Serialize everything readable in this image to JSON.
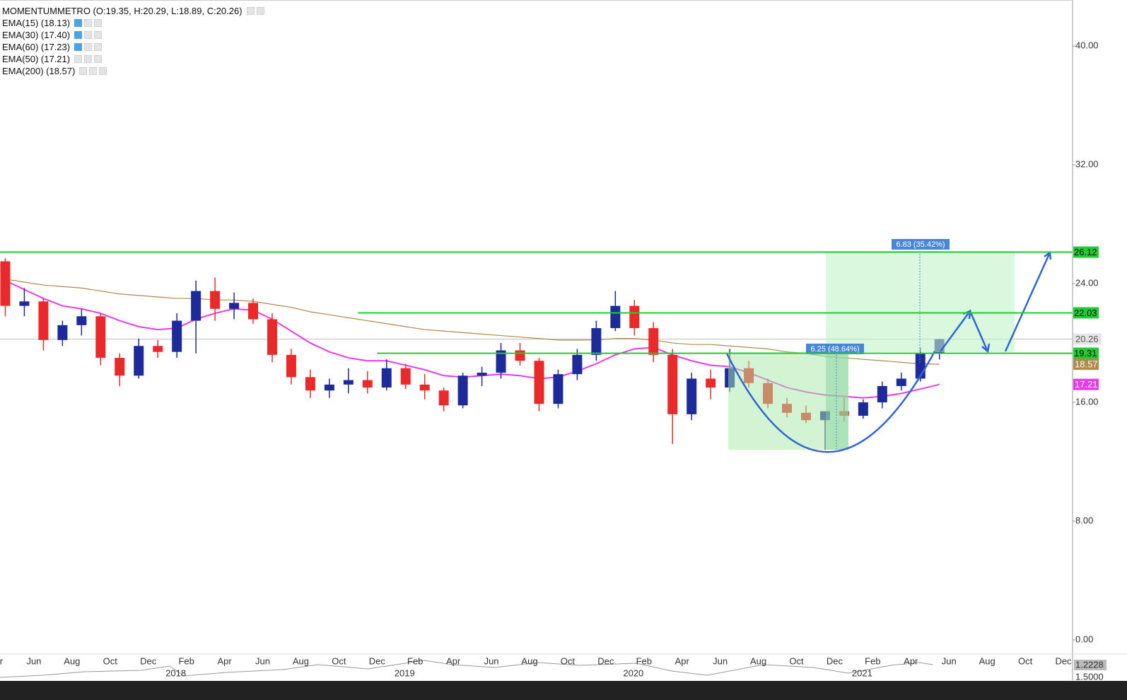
{
  "chart_data": {
    "type": "candlestick",
    "title": "MOMENTUMMETRO (O:19.35, H:20.29, L:18.89, C:20.26)",
    "x": [
      "2017-04",
      "2017-05",
      "2017-06",
      "2017-07",
      "2017-08",
      "2017-09",
      "2017-10",
      "2017-11",
      "2017-12",
      "2018-01",
      "2018-02",
      "2018-03",
      "2018-04",
      "2018-05",
      "2018-06",
      "2018-07",
      "2018-08",
      "2018-09",
      "2018-10",
      "2018-11",
      "2018-12",
      "2019-01",
      "2019-02",
      "2019-03",
      "2019-04",
      "2019-05",
      "2019-06",
      "2019-07",
      "2019-08",
      "2019-09",
      "2019-10",
      "2019-11",
      "2019-12",
      "2020-01",
      "2020-02",
      "2020-03",
      "2020-04",
      "2020-05",
      "2020-06",
      "2020-07",
      "2020-08",
      "2020-09",
      "2020-10",
      "2020-11",
      "2020-12",
      "2021-01",
      "2021-02",
      "2021-03",
      "2021-04",
      "2021-05"
    ],
    "open": [
      25.5,
      22.5,
      22.8,
      20.2,
      21.2,
      21.8,
      19.0,
      17.8,
      19.8,
      19.4,
      21.5,
      23.5,
      22.3,
      22.7,
      21.6,
      19.2,
      17.7,
      16.8,
      17.2,
      17.5,
      17.0,
      18.3,
      17.2,
      16.8,
      15.8,
      17.8,
      18.0,
      19.5,
      18.8,
      15.9,
      17.9,
      19.2,
      21.0,
      22.5,
      21.0,
      19.2,
      15.2,
      17.6,
      17.0,
      18.3,
      17.3,
      15.9,
      15.3,
      14.8,
      15.4,
      15.1,
      16.0,
      17.1,
      17.6,
      19.35
    ],
    "high": [
      25.7,
      23.7,
      23.0,
      21.5,
      22.3,
      22.0,
      19.3,
      20.3,
      20.2,
      22.0,
      24.2,
      24.4,
      23.4,
      23.0,
      22.0,
      19.6,
      18.2,
      17.6,
      18.3,
      18.1,
      18.9,
      18.6,
      17.9,
      17.0,
      18.0,
      18.4,
      20.0,
      20.0,
      19.0,
      18.2,
      19.6,
      21.5,
      23.5,
      22.9,
      21.4,
      19.6,
      18.0,
      18.2,
      19.6,
      18.8,
      17.6,
      16.3,
      15.8,
      15.0,
      16.3,
      16.2,
      17.4,
      18.0,
      19.7,
      20.29
    ],
    "low": [
      21.8,
      21.8,
      19.5,
      19.8,
      20.5,
      18.5,
      17.1,
      17.6,
      19.0,
      19.0,
      19.3,
      21.5,
      21.6,
      21.3,
      18.7,
      17.2,
      16.3,
      16.3,
      16.6,
      16.6,
      16.8,
      16.9,
      16.2,
      15.4,
      15.6,
      17.1,
      17.6,
      18.5,
      15.4,
      15.6,
      17.5,
      18.8,
      20.8,
      20.5,
      18.7,
      13.2,
      14.8,
      16.2,
      16.7,
      17.0,
      15.6,
      15.0,
      14.6,
      12.8,
      14.7,
      14.9,
      15.6,
      16.8,
      17.4,
      18.89
    ],
    "close": [
      22.5,
      22.8,
      20.2,
      21.2,
      21.8,
      19.0,
      17.8,
      19.8,
      19.4,
      21.5,
      23.5,
      22.3,
      22.7,
      21.6,
      19.2,
      17.7,
      16.8,
      17.2,
      17.5,
      17.0,
      18.3,
      17.2,
      16.8,
      15.8,
      17.8,
      18.0,
      19.5,
      18.8,
      15.9,
      17.9,
      19.2,
      21.0,
      22.5,
      21.0,
      19.2,
      15.2,
      17.6,
      17.0,
      18.3,
      17.3,
      15.9,
      15.3,
      14.8,
      15.4,
      15.1,
      16.0,
      17.1,
      17.6,
      19.3,
      20.26
    ],
    "up_color": "#1c2a9a",
    "down_color": "#ea2a2a",
    "series": [
      {
        "name": "EMA(15) (18.13)"
      },
      {
        "name": "EMA(30) (17.40)"
      },
      {
        "name": "EMA(60) (17.23)"
      },
      {
        "name": "EMA(50) (17.21)",
        "color": "#e83ae8",
        "last": 17.21,
        "values": [
          24.2,
          23.6,
          23.0,
          22.5,
          22.3,
          22.0,
          21.5,
          21.1,
          20.9,
          21.0,
          21.6,
          22.0,
          22.3,
          22.2,
          21.6,
          20.8,
          20.0,
          19.4,
          19.0,
          18.8,
          18.8,
          18.5,
          18.2,
          17.8,
          17.7,
          17.8,
          17.9,
          17.8,
          17.6,
          17.7,
          18.1,
          18.6,
          19.2,
          19.6,
          19.7,
          19.2,
          18.8,
          18.5,
          18.4,
          18.0,
          17.5,
          17.0,
          16.7,
          16.5,
          16.4,
          16.3,
          16.4,
          16.6,
          16.9,
          17.21
        ]
      },
      {
        "name": "EMA(200) (18.57)",
        "color": "#b08a4a",
        "last": 18.57,
        "values": [
          24.3,
          24.1,
          23.9,
          23.8,
          23.7,
          23.5,
          23.3,
          23.2,
          23.1,
          23.0,
          23.0,
          22.9,
          22.9,
          22.8,
          22.6,
          22.4,
          22.1,
          21.9,
          21.7,
          21.5,
          21.3,
          21.1,
          20.9,
          20.8,
          20.7,
          20.6,
          20.5,
          20.4,
          20.3,
          20.2,
          20.2,
          20.2,
          20.3,
          20.3,
          20.2,
          20.0,
          19.9,
          19.9,
          19.8,
          19.7,
          19.6,
          19.4,
          19.3,
          19.1,
          19.0,
          18.9,
          18.8,
          18.7,
          18.6,
          18.57
        ]
      }
    ],
    "levels": [
      {
        "value": 26.12,
        "start": "2017-04",
        "color": "#22cc33"
      },
      {
        "value": 22.03,
        "start": "2018-11",
        "color": "#22cc33"
      },
      {
        "value": 19.31,
        "start": "2018-12",
        "color": "#22cc33"
      }
    ],
    "price_line": {
      "value": 20.26,
      "color": "#bdbdbd"
    },
    "measures": [
      "6.83 (35.42%)",
      "6.25 (48.64%)"
    ],
    "xlim": [
      "2017-04",
      "2021-12"
    ],
    "xticks": [
      {
        "value": "2017-04",
        "label": "Apr"
      },
      {
        "value": "2017-06",
        "label": "Jun"
      },
      {
        "value": "2017-08",
        "label": "Aug"
      },
      {
        "value": "2017-10",
        "label": "Oct"
      },
      {
        "value": "2017-12",
        "label": "Dec"
      },
      {
        "value": "2018-02",
        "label": "Feb"
      },
      {
        "value": "2018-04",
        "label": "Apr"
      },
      {
        "value": "2018-06",
        "label": "Jun"
      },
      {
        "value": "2018-08",
        "label": "Aug"
      },
      {
        "value": "2018-10",
        "label": "Oct"
      },
      {
        "value": "2018-12",
        "label": "Dec"
      },
      {
        "value": "2019-02",
        "label": "Feb"
      },
      {
        "value": "2019-04",
        "label": "Apr"
      },
      {
        "value": "2019-06",
        "label": "Jun"
      },
      {
        "value": "2019-08",
        "label": "Aug"
      },
      {
        "value": "2019-10",
        "label": "Oct"
      },
      {
        "value": "2019-12",
        "label": "Dec"
      },
      {
        "value": "2020-02",
        "label": "Feb"
      },
      {
        "value": "2020-04",
        "label": "Apr"
      },
      {
        "value": "2020-06",
        "label": "Jun"
      },
      {
        "value": "2020-08",
        "label": "Aug"
      },
      {
        "value": "2020-10",
        "label": "Oct"
      },
      {
        "value": "2020-12",
        "label": "Dec"
      },
      {
        "value": "2021-02",
        "label": "Feb"
      },
      {
        "value": "2021-04",
        "label": "Apr"
      },
      {
        "value": "2021-06",
        "label": "Jun"
      },
      {
        "value": "2021-08",
        "label": "Aug"
      },
      {
        "value": "2021-10",
        "label": "Oct"
      },
      {
        "value": "2021-12",
        "label": "Dec"
      }
    ],
    "year_ticks": [
      {
        "value": "2018-01",
        "label": "2018"
      },
      {
        "value": "2019-01",
        "label": "2019"
      },
      {
        "value": "2020-01",
        "label": "2020"
      },
      {
        "value": "2021-01",
        "label": "2021"
      }
    ],
    "ylim": [
      -0.95,
      43.1
    ],
    "yticks": [
      {
        "value": 0,
        "label": "0.00"
      },
      {
        "value": 8,
        "label": "8.00"
      },
      {
        "value": 16,
        "label": "16.00"
      },
      {
        "value": 24,
        "label": "24.00"
      },
      {
        "value": 32,
        "label": "32.00"
      },
      {
        "value": 40,
        "label": "40.00"
      }
    ],
    "grid": false,
    "lower_panel_labels": [
      "1.2228",
      "1.5000"
    ]
  }
}
